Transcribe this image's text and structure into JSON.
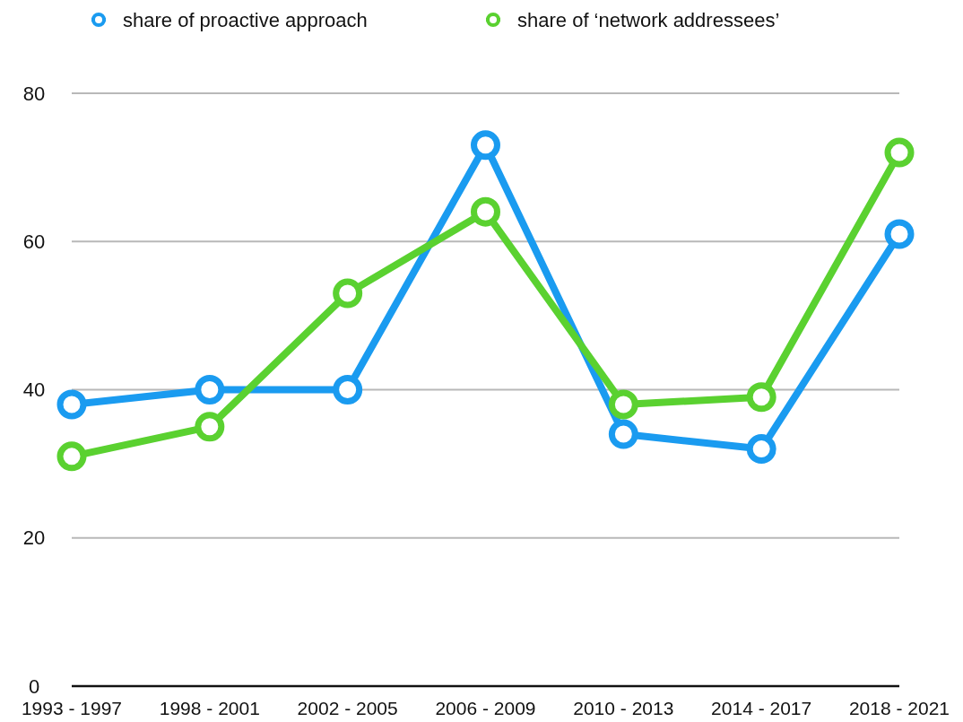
{
  "chart_data": {
    "type": "line",
    "categories": [
      "1993 - 1997",
      "1998 - 2001",
      "2002 - 2005",
      "2006 - 2009",
      "2010 - 2013",
      "2014 - 2017",
      "2018 - 2021"
    ],
    "series": [
      {
        "name": "share of proactive approach",
        "color": "#1a9bf0",
        "values": [
          38,
          40,
          40,
          73,
          34,
          32,
          61
        ]
      },
      {
        "name": "share of ‘network addressees’",
        "color": "#5ad130",
        "values": [
          31,
          35,
          53,
          64,
          38,
          39,
          72
        ]
      }
    ],
    "ylim": [
      0,
      80
    ],
    "yticks": [
      0,
      20,
      40,
      60,
      80
    ],
    "grid": "y",
    "legend": "top",
    "marker": "circle",
    "line_style": "solid"
  }
}
